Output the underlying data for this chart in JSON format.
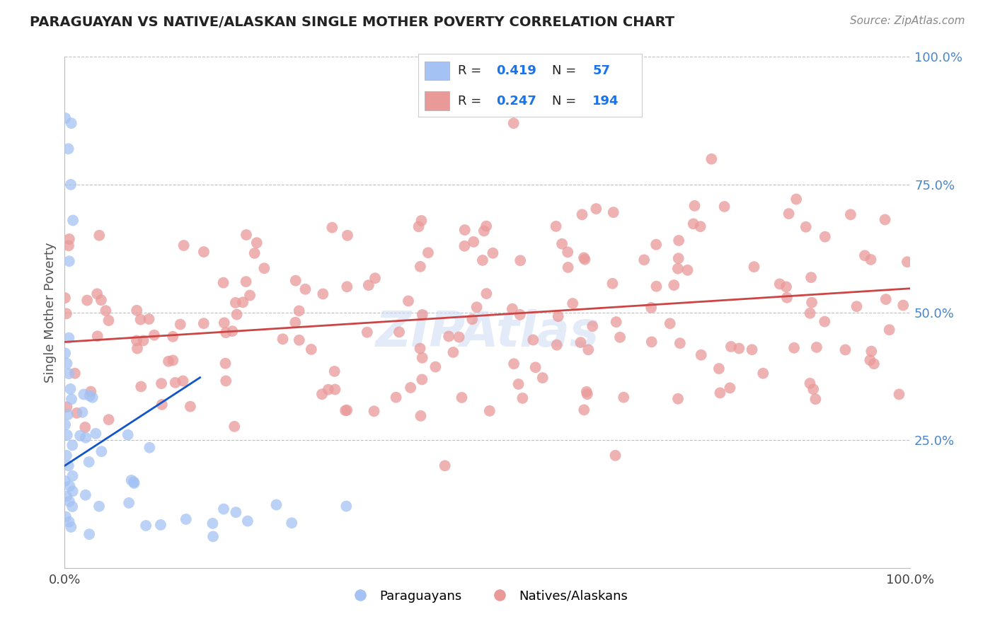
{
  "title": "PARAGUAYAN VS NATIVE/ALASKAN SINGLE MOTHER POVERTY CORRELATION CHART",
  "source": "Source: ZipAtlas.com",
  "ylabel": "Single Mother Poverty",
  "blue_color": "#a4c2f4",
  "pink_color": "#ea9999",
  "blue_line_color": "#1155cc",
  "pink_line_color": "#cc4444",
  "watermark_color": "#c9daf8",
  "watermark_text": "ZIPAtlas",
  "legend_bottom1": "Paraguayans",
  "legend_bottom2": "Natives/Alaskans",
  "blue_R": 0.419,
  "pink_R": 0.247,
  "blue_N": 57,
  "pink_N": 194,
  "title_color": "#222222",
  "source_color": "#888888",
  "axis_tick_color": "#4a86c8",
  "ylabel_color": "#555555",
  "grid_color": "#bbbbbb",
  "legend_text_color": "#222222",
  "legend_value_color": "#1a73e8",
  "bg_color": "#ffffff"
}
